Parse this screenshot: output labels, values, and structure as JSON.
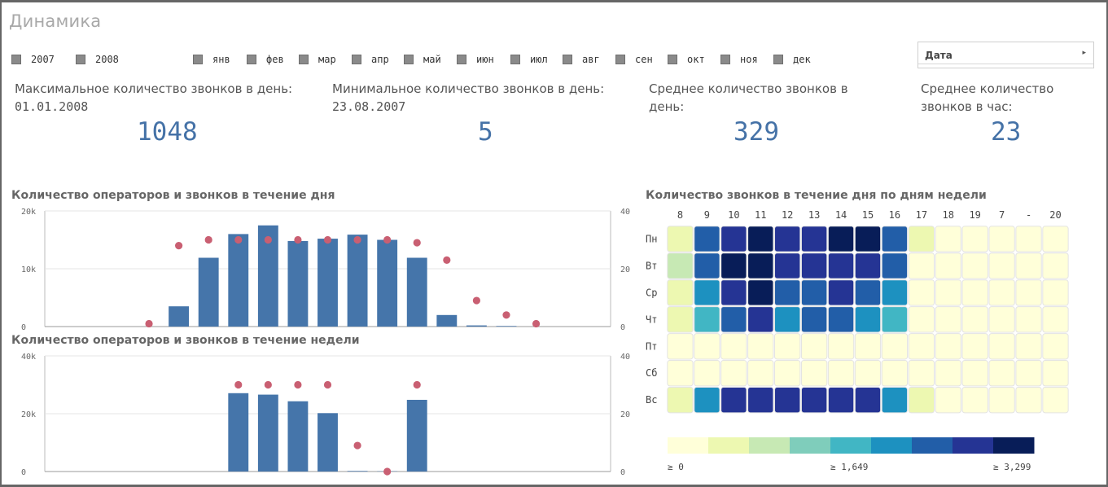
{
  "title": "Динамика",
  "filters": {
    "years": [
      "2007",
      "2008"
    ],
    "months": [
      "янв",
      "фев",
      "мар",
      "апр",
      "май",
      "июн",
      "июл",
      "авг",
      "сен",
      "окт",
      "ноя",
      "дек"
    ]
  },
  "date_filter": {
    "label": "Дата",
    "arrow": "▸"
  },
  "kpis": [
    {
      "caption_lines": [
        "Максимальное количество звонков в день:"
      ],
      "sub": "01.01.2008",
      "value": "1048"
    },
    {
      "caption_lines": [
        "Минимальное количество звонков в день:"
      ],
      "sub": "23.08.2007",
      "value": "5"
    },
    {
      "caption_lines": [
        "Среднее количество звонков в",
        "день:"
      ],
      "sub": "",
      "value": "329"
    },
    {
      "caption_lines": [
        "Среднее количество",
        "звонков в час:"
      ],
      "sub": "",
      "value": "23"
    }
  ],
  "colors": {
    "bar": "#4575aa",
    "dot": "#c95f72",
    "kpi_value": "#4572a7",
    "scale": [
      "#ffffd9",
      "#edf8b1",
      "#c7e9b4",
      "#7fcdbb",
      "#41b6c4",
      "#1d91c0",
      "#225ea8",
      "#253494",
      "#081d58"
    ]
  },
  "chart_data": [
    {
      "type": "bar",
      "title": "Количество операторов и звонков в течение дня",
      "y_left_ticks": [
        "20k",
        "10k",
        "0"
      ],
      "y_right_ticks": [
        "40",
        "20",
        "0"
      ],
      "ylim_left": [
        0,
        20000
      ],
      "ylim_right": [
        0,
        40
      ],
      "slots": 19,
      "series": [
        {
          "name": "звонки",
          "axis": "left",
          "kind": "bar",
          "values": [
            0,
            0,
            0,
            0,
            3500,
            11900,
            16000,
            17500,
            14800,
            15200,
            15900,
            15000,
            11900,
            2000,
            200,
            100,
            0,
            0,
            0
          ]
        },
        {
          "name": "операторы",
          "axis": "right",
          "kind": "dot",
          "values": [
            null,
            null,
            null,
            1,
            28,
            30,
            30,
            30,
            30,
            30,
            30,
            30,
            29,
            23,
            9,
            4,
            1,
            null,
            null
          ]
        }
      ]
    },
    {
      "type": "bar",
      "title": "Количество операторов и звонков в течение недели",
      "y_left_ticks": [
        "40k",
        "20k",
        "0"
      ],
      "y_right_ticks": [
        "40",
        "20",
        "0"
      ],
      "ylim_left": [
        0,
        40000
      ],
      "ylim_right": [
        0,
        40
      ],
      "slots": 19,
      "series": [
        {
          "name": "звонки",
          "axis": "left",
          "kind": "bar",
          "values": [
            0,
            0,
            0,
            0,
            0,
            0,
            27100,
            26600,
            24300,
            20200,
            200,
            100,
            24800,
            0,
            0,
            0,
            0,
            0,
            0
          ]
        },
        {
          "name": "операторы",
          "axis": "right",
          "kind": "dot",
          "values": [
            null,
            null,
            null,
            null,
            null,
            null,
            30,
            30,
            30,
            30,
            9,
            0,
            30,
            null,
            null,
            null,
            null,
            null,
            null
          ]
        }
      ]
    },
    {
      "type": "heatmap",
      "title": "Количество звонков в течение дня по дням недели",
      "columns": [
        "8",
        "9",
        "10",
        "11",
        "12",
        "13",
        "14",
        "15",
        "16",
        "17",
        "18",
        "19",
        "7",
        "-",
        "20"
      ],
      "rows": [
        "Пн",
        "Вт",
        "Ср",
        "Чт",
        "Пт",
        "Сб",
        "Вс"
      ],
      "levels": [
        [
          1,
          6,
          7,
          8,
          7,
          7,
          8,
          8,
          6,
          1,
          0,
          0,
          0,
          0,
          0
        ],
        [
          2,
          6,
          8,
          8,
          7,
          7,
          7,
          7,
          6,
          0,
          0,
          0,
          0,
          0,
          0
        ],
        [
          1,
          5,
          7,
          8,
          6,
          6,
          7,
          6,
          5,
          0,
          0,
          0,
          0,
          0,
          0
        ],
        [
          1,
          4,
          6,
          7,
          5,
          6,
          6,
          5,
          4,
          0,
          0,
          0,
          0,
          0,
          0
        ],
        [
          0,
          0,
          0,
          0,
          0,
          0,
          0,
          0,
          0,
          0,
          0,
          0,
          0,
          0,
          0
        ],
        [
          0,
          0,
          0,
          0,
          0,
          0,
          0,
          0,
          0,
          0,
          0,
          0,
          0,
          0,
          0
        ],
        [
          1,
          5,
          7,
          7,
          7,
          7,
          7,
          7,
          5,
          1,
          0,
          0,
          0,
          0,
          0
        ]
      ],
      "legend_labels": [
        "≥ 0",
        "≥ 1,649",
        "≥ 3,299"
      ]
    }
  ]
}
